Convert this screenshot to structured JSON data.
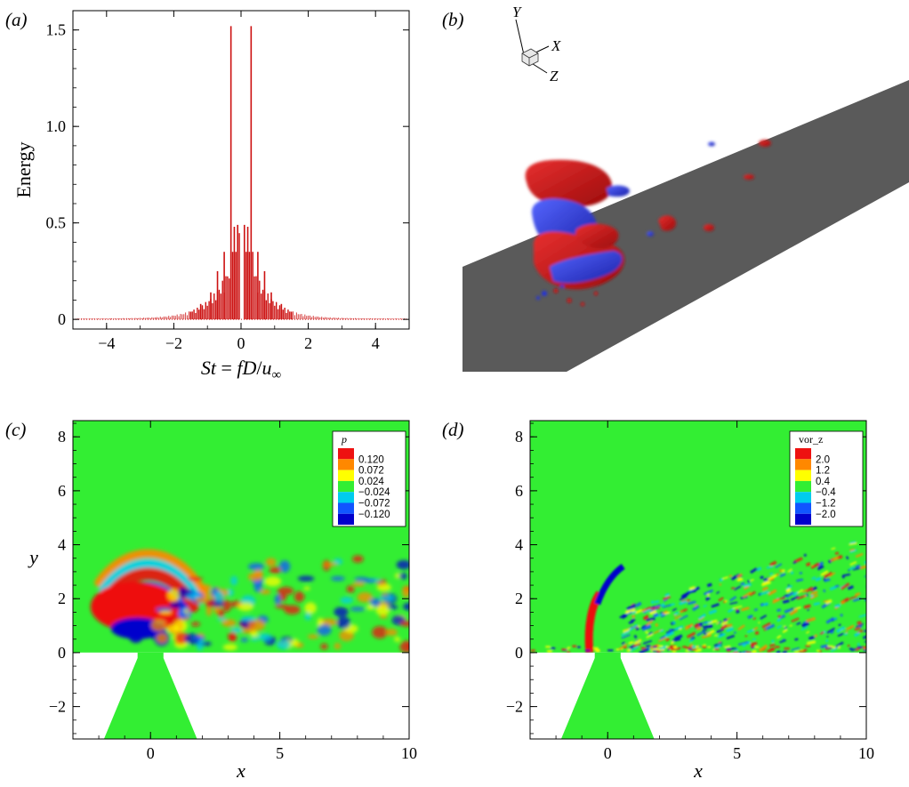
{
  "panels": {
    "a": {
      "label": "(a)"
    },
    "b": {
      "label": "(b)"
    },
    "c": {
      "label": "(c)"
    },
    "d": {
      "label": "(d)"
    }
  },
  "chart_data": [
    {
      "panel": "a",
      "type": "bar",
      "xlabel": "St = fD/u∞",
      "ylabel": "Energy",
      "xlim": [
        -5,
        5
      ],
      "ylim": [
        -0.05,
        1.6
      ],
      "xticks": [
        -4,
        -2,
        0,
        2,
        4
      ],
      "yticks": [
        0,
        0.5,
        1.0,
        1.5
      ],
      "xtick_labels": [
        "−4",
        "−2",
        "0",
        "2",
        "4"
      ],
      "ytick_labels": [
        "0",
        "0.5",
        "1.0",
        "1.5"
      ],
      "color": "#cc1111",
      "spectrum": {
        "x": [
          -1.5,
          -1.2,
          -0.9,
          -0.7,
          -0.5,
          -0.3,
          -0.2,
          -0.1,
          0.1,
          0.2,
          0.3,
          0.5,
          0.7,
          0.9,
          1.2,
          1.5
        ],
        "y": [
          0.04,
          0.08,
          0.14,
          0.25,
          0.35,
          1.52,
          0.48,
          0.49,
          0.49,
          0.48,
          1.52,
          0.35,
          0.25,
          0.14,
          0.08,
          0.04
        ]
      }
    },
    {
      "panel": "b",
      "type": "other",
      "axes_triad": {
        "x": "X",
        "y": "Y",
        "z": "Z"
      },
      "colors": {
        "positive": "#cc1111",
        "negative": "#2233dd",
        "plate": "#5a5a5a"
      }
    },
    {
      "panel": "c",
      "type": "heatmap",
      "xlabel": "x",
      "ylabel": "y",
      "xlim": [
        -3,
        10
      ],
      "ylim": [
        -3.2,
        8.6
      ],
      "xticks": [
        0,
        5,
        10
      ],
      "yticks": [
        -2,
        0,
        2,
        4,
        6,
        8
      ],
      "xtick_labels": [
        "0",
        "5",
        "10"
      ],
      "ytick_labels": [
        "−2",
        "0",
        "2",
        "4",
        "6",
        "8"
      ],
      "legend": {
        "title": "p",
        "placement": "top-right",
        "levels": [
          "0.120",
          "0.072",
          "0.024",
          "−0.024",
          "−0.072",
          "−0.120"
        ],
        "colors": [
          "#ee1111",
          "#ff8800",
          "#ffff00",
          "#33ee33",
          "#00ccee",
          "#1155ff",
          "#0000cc"
        ]
      }
    },
    {
      "panel": "d",
      "type": "heatmap",
      "xlabel": "x",
      "ylabel": "",
      "xlim": [
        -3,
        10
      ],
      "ylim": [
        -3.2,
        8.6
      ],
      "xticks": [
        0,
        5,
        10
      ],
      "yticks": [
        -2,
        0,
        2,
        4,
        6,
        8
      ],
      "xtick_labels": [
        "0",
        "5",
        "10"
      ],
      "ytick_labels": [
        "−2",
        "0",
        "2",
        "4",
        "6",
        "8"
      ],
      "legend": {
        "title": "vor_z",
        "placement": "top-right",
        "levels": [
          "2.0",
          "1.2",
          "0.4",
          "−0.4",
          "−1.2",
          "−2.0"
        ],
        "colors": [
          "#ee1111",
          "#ff8800",
          "#ffff00",
          "#33ee33",
          "#00ccee",
          "#1155ff",
          "#0000cc"
        ]
      }
    }
  ]
}
